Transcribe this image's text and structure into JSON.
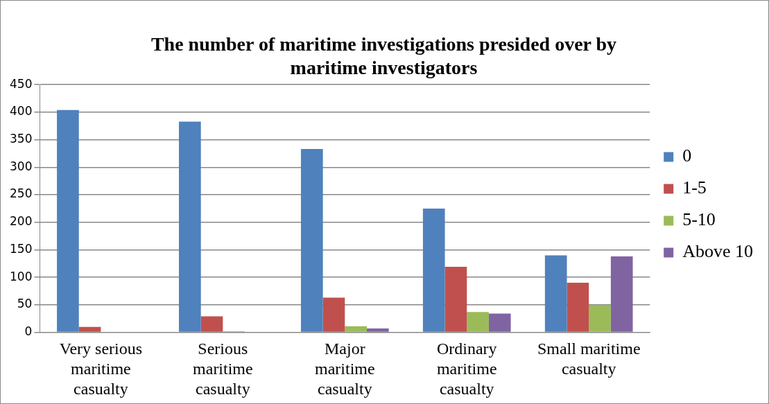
{
  "chart_data": {
    "type": "bar",
    "title": "The number of maritime investigations presided over by maritime investigators",
    "categories": [
      "Very serious maritime casualty",
      "Serious maritime casualty",
      "Major maritime casualty",
      "Ordinary maritime casualty",
      "Small maritime casualty"
    ],
    "series": [
      {
        "name": "0",
        "color": "#4f81bd",
        "values": [
          404,
          383,
          333,
          225,
          140
        ]
      },
      {
        "name": "1-5",
        "color": "#c0504d",
        "values": [
          10,
          29,
          63,
          119,
          90
        ]
      },
      {
        "name": "5-10",
        "color": "#9bbb59",
        "values": [
          0,
          2,
          11,
          37,
          50
        ]
      },
      {
        "name": "Above 10",
        "color": "#8064a2",
        "values": [
          0,
          0,
          7,
          34,
          138
        ]
      }
    ],
    "ylim": [
      0,
      450
    ],
    "yticks": [
      0,
      50,
      100,
      150,
      200,
      250,
      300,
      350,
      400,
      450
    ],
    "grid": "y",
    "legend": "right"
  }
}
